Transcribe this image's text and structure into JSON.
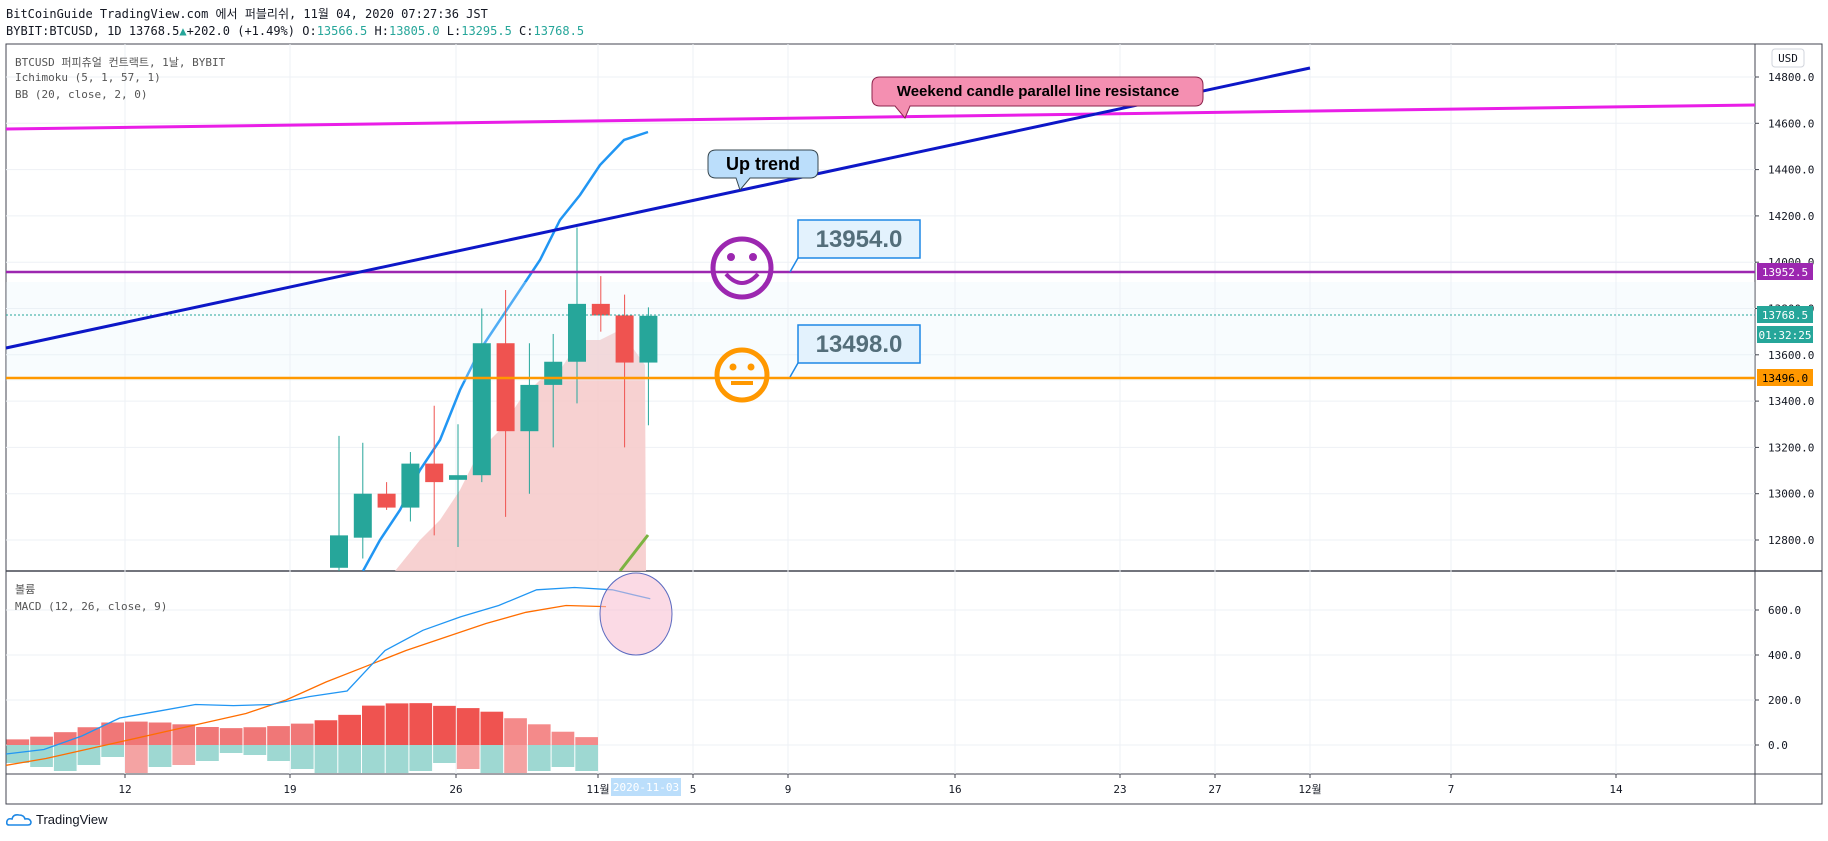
{
  "header": {
    "line1": "BitCoinGuide TradingView.com 에서 퍼블리쉬, 11월 04, 2020 07:27:36 JST",
    "symbol": "BYBIT:BTCUSD, 1D",
    "last": "13768.5",
    "change_arrow": "▲",
    "change": "+202.0 (+1.49%)",
    "o_label": "O:",
    "o": "13566.5",
    "h_label": "H:",
    "h": "13805.0",
    "l_label": "L:",
    "l": "13295.5",
    "c_label": "C:",
    "c": "13768.5"
  },
  "legend": {
    "title": "BTCUSD 퍼피츄얼 컨트랙트, 1날, BYBIT",
    "ichimoku": "Ichimoku (5, 1, 57, 1)",
    "bb": "BB (20, close, 2, 0)",
    "volume": "볼륨",
    "macd": "MACD (12, 26, close, 9)"
  },
  "currency_button": "USD",
  "price_axis": [
    "14800.0",
    "14600.0",
    "14400.0",
    "14200.0",
    "14000.0",
    "13800.0",
    "13600.0",
    "13400.0",
    "13200.0",
    "13000.0",
    "12800.0"
  ],
  "macd_axis": [
    "600.0",
    "400.0",
    "200.0",
    "0.0"
  ],
  "time_axis": [
    "12",
    "19",
    "26",
    "11월",
    "5",
    "9",
    "16",
    "23",
    "27",
    "12월",
    "7",
    "14"
  ],
  "date_badge": "2020-11-03",
  "price_badges": {
    "purple": "13952.5",
    "last": "13768.5",
    "countdown": "01:32:25",
    "orange": "13496.0"
  },
  "annotations": {
    "resistance": "Weekend candle parallel line resistance",
    "uptrend": "Up trend",
    "label_upper": "13954.0",
    "label_lower": "13498.0"
  },
  "colors": {
    "up": "#26a69a",
    "down": "#ef5350",
    "magenta": "#e91ee7",
    "purple": "#9c27b0",
    "orange": "#ff9800",
    "trend": "#0d17c7",
    "bb": "#2196f3"
  },
  "chart_data": {
    "type": "candlestick",
    "candles": [
      {
        "o": 12680,
        "h": 13250,
        "l": 12500,
        "c": 12820
      },
      {
        "o": 12810,
        "h": 13220,
        "l": 12720,
        "c": 13000
      },
      {
        "o": 13000,
        "h": 13050,
        "l": 12930,
        "c": 12940
      },
      {
        "o": 12940,
        "h": 13180,
        "l": 12880,
        "c": 13130
      },
      {
        "o": 13130,
        "h": 13380,
        "l": 12820,
        "c": 13050
      },
      {
        "o": 13060,
        "h": 13300,
        "l": 12770,
        "c": 13080
      },
      {
        "o": 13080,
        "h": 13800,
        "l": 13050,
        "c": 13650
      },
      {
        "o": 13650,
        "h": 13880,
        "l": 12900,
        "c": 13270
      },
      {
        "o": 13270,
        "h": 13650,
        "l": 13000,
        "c": 13470
      },
      {
        "o": 13470,
        "h": 13690,
        "l": 13200,
        "c": 13570
      },
      {
        "o": 13570,
        "h": 14150,
        "l": 13390,
        "c": 13820
      },
      {
        "o": 13820,
        "h": 13940,
        "l": 13700,
        "c": 13770
      },
      {
        "o": 13770,
        "h": 13860,
        "l": 13200,
        "c": 13566.5
      },
      {
        "o": 13566.5,
        "h": 13805,
        "l": 13295.5,
        "c": 13768.5
      }
    ],
    "macd_histogram": [
      25,
      37,
      57,
      79,
      100,
      104,
      100,
      92,
      80,
      75,
      79,
      84,
      95,
      110,
      134,
      175,
      185,
      186,
      174,
      164,
      148,
      119,
      92,
      59,
      35
    ],
    "macd_line": [
      -40,
      -20,
      40,
      120,
      150,
      180,
      175,
      180,
      215,
      240,
      420,
      510,
      570,
      620,
      690,
      700,
      690,
      650
    ],
    "signal_line": [
      -90,
      -60,
      -20,
      20,
      60,
      100,
      140,
      200,
      280,
      350,
      420,
      480,
      540,
      590,
      620,
      615
    ]
  }
}
